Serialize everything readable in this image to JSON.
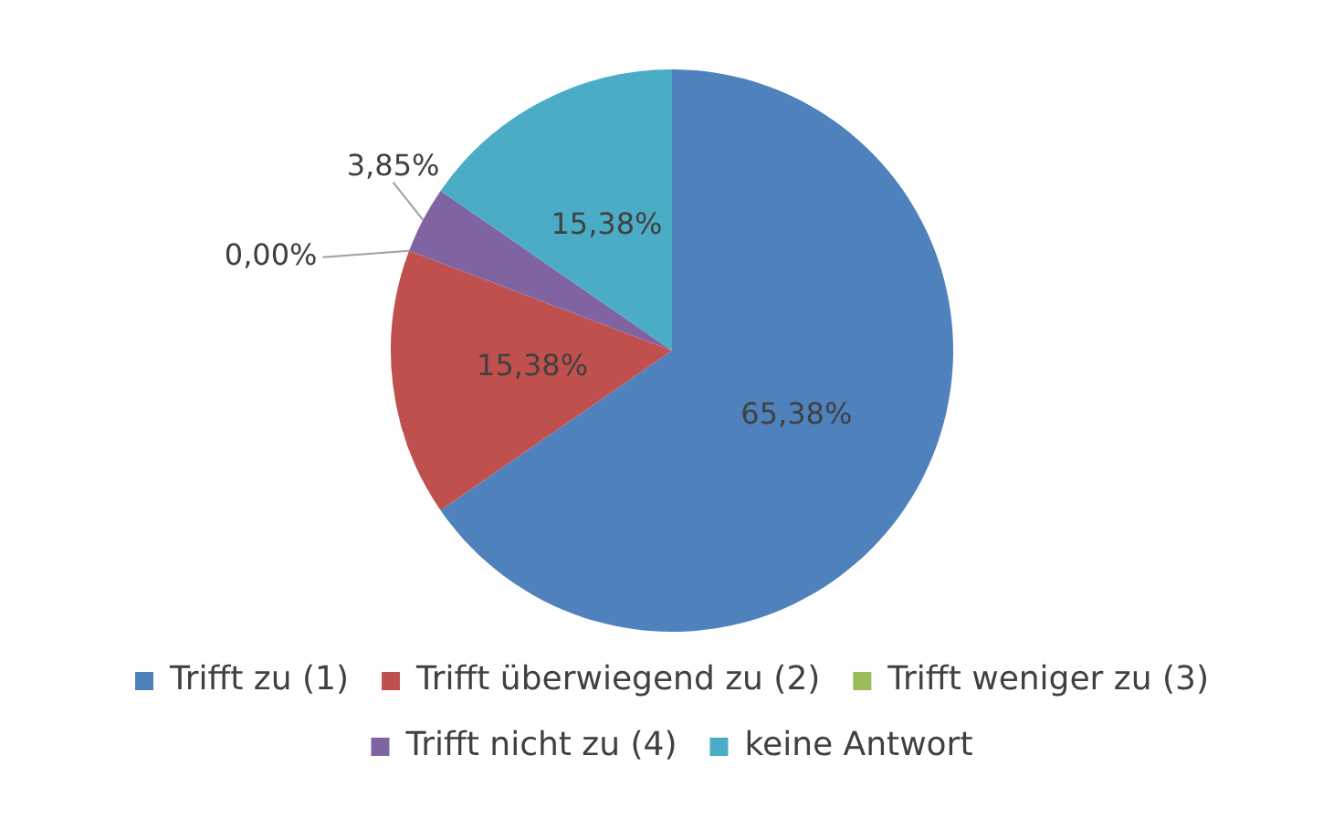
{
  "chart_data": {
    "type": "pie",
    "categories": [
      "Trifft zu (1)",
      "Trifft überwiegend zu (2)",
      "Trifft weniger zu (3)",
      "Trifft nicht zu (4)",
      "keine Antwort"
    ],
    "values": [
      65.38,
      15.38,
      0.0,
      3.85,
      15.38
    ],
    "colors": [
      "#4f81bd",
      "#c0504d",
      "#9bbb59",
      "#8064a2",
      "#4bacc6"
    ],
    "value_labels": [
      "65,38%",
      "15,38%",
      "0,00%",
      "3,85%",
      "15,38%"
    ],
    "legend": "bottom"
  }
}
